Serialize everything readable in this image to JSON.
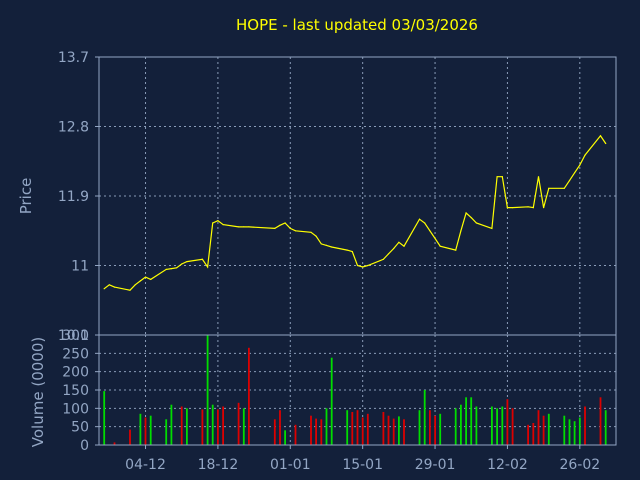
{
  "chart_data": [
    {
      "type": "line",
      "title": "HOPE - last updated 03/03/2026",
      "ylabel": "Price",
      "ylim": [
        10.1,
        13.7
      ],
      "yticks": [
        "13.7",
        "12.8",
        "11.9",
        "11",
        "10.1"
      ],
      "ytick_values": [
        13.7,
        12.8,
        11.9,
        11,
        10.1
      ],
      "grid": true,
      "colors": {
        "background": "#13203a",
        "axes": "#93a6c4",
        "grid": "#8a9cb8",
        "text": "#93a6c4",
        "title": "#ffff00",
        "line": "#ffff00"
      },
      "x": [
        "2025-11-26",
        "2025-11-27",
        "2025-11-28",
        "2025-12-01",
        "2025-12-02",
        "2025-12-03",
        "2025-12-04",
        "2025-12-05",
        "2025-12-08",
        "2025-12-09",
        "2025-12-10",
        "2025-12-11",
        "2025-12-12",
        "2025-12-15",
        "2025-12-16",
        "2025-12-17",
        "2025-12-18",
        "2025-12-19",
        "2025-12-22",
        "2025-12-23",
        "2025-12-24",
        "2025-12-29",
        "2025-12-30",
        "2025-12-31",
        "2026-01-01",
        "2026-01-02",
        "2026-01-05",
        "2026-01-06",
        "2026-01-07",
        "2026-01-08",
        "2026-01-09",
        "2026-01-12",
        "2026-01-13",
        "2026-01-14",
        "2026-01-15",
        "2026-01-16",
        "2026-01-19",
        "2026-01-20",
        "2026-01-21",
        "2026-01-22",
        "2026-01-23",
        "2026-01-26",
        "2026-01-27",
        "2026-01-28",
        "2026-01-29",
        "2026-01-30",
        "2026-02-02",
        "2026-02-03",
        "2026-02-04",
        "2026-02-05",
        "2026-02-06",
        "2026-02-09",
        "2026-02-10",
        "2026-02-11",
        "2026-02-12",
        "2026-02-13",
        "2026-02-16",
        "2026-02-17",
        "2026-02-18",
        "2026-02-19",
        "2026-02-20",
        "2026-02-23",
        "2026-02-24",
        "2026-02-25",
        "2026-02-26",
        "2026-02-27",
        "2026-03-02",
        "2026-03-03"
      ],
      "values": [
        10.7,
        10.75,
        10.72,
        10.68,
        10.75,
        10.8,
        10.85,
        10.82,
        10.95,
        10.96,
        10.97,
        11.02,
        11.05,
        11.08,
        10.98,
        11.55,
        11.58,
        11.53,
        11.5,
        11.5,
        11.5,
        11.48,
        11.52,
        11.55,
        11.48,
        11.45,
        11.43,
        11.38,
        11.28,
        11.26,
        11.24,
        11.2,
        11.18,
        11.0,
        10.98,
        11.0,
        11.08,
        11.15,
        11.22,
        11.3,
        11.25,
        11.6,
        11.55,
        11.45,
        11.35,
        11.25,
        11.2,
        11.45,
        11.68,
        11.62,
        11.55,
        11.48,
        12.15,
        12.15,
        11.75,
        11.75,
        11.76,
        11.75,
        12.15,
        11.75,
        12.0,
        12.0,
        12.1,
        12.2,
        12.3,
        12.43,
        12.68,
        12.58
      ]
    },
    {
      "type": "bar",
      "ylabel": "Volume (0000)",
      "ylim": [
        0,
        300
      ],
      "yticks": [
        "300",
        "250",
        "200",
        "150",
        "100",
        "50",
        "0"
      ],
      "ytick_values": [
        300,
        250,
        200,
        150,
        100,
        50,
        0
      ],
      "xtick_labels": [
        "04-12",
        "18-12",
        "01-01",
        "15-01",
        "29-01",
        "12-02",
        "26-02"
      ],
      "xtick_dates": [
        "2025-12-04",
        "2025-12-18",
        "2026-01-01",
        "2026-01-15",
        "2026-01-29",
        "2026-02-12",
        "2026-02-26"
      ],
      "grid": true,
      "colors": {
        "up": "#00dd00",
        "down": "#dd0000"
      },
      "bars": [
        {
          "date": "2025-11-26",
          "value": 147,
          "dir": "up"
        },
        {
          "date": "2025-11-28",
          "value": 7,
          "dir": "down"
        },
        {
          "date": "2025-12-01",
          "value": 42,
          "dir": "down"
        },
        {
          "date": "2025-12-03",
          "value": 85,
          "dir": "up"
        },
        {
          "date": "2025-12-04",
          "value": 75,
          "dir": "down"
        },
        {
          "date": "2025-12-05",
          "value": 80,
          "dir": "up"
        },
        {
          "date": "2025-12-08",
          "value": 70,
          "dir": "up"
        },
        {
          "date": "2025-12-09",
          "value": 110,
          "dir": "up"
        },
        {
          "date": "2025-12-11",
          "value": 105,
          "dir": "down"
        },
        {
          "date": "2025-12-12",
          "value": 100,
          "dir": "up"
        },
        {
          "date": "2025-12-15",
          "value": 97,
          "dir": "down"
        },
        {
          "date": "2025-12-16",
          "value": 300,
          "dir": "up"
        },
        {
          "date": "2025-12-17",
          "value": 110,
          "dir": "up"
        },
        {
          "date": "2025-12-18",
          "value": 97,
          "dir": "down"
        },
        {
          "date": "2025-12-19",
          "value": 105,
          "dir": "down"
        },
        {
          "date": "2025-12-22",
          "value": 115,
          "dir": "down"
        },
        {
          "date": "2025-12-23",
          "value": 100,
          "dir": "up"
        },
        {
          "date": "2025-12-24",
          "value": 265,
          "dir": "down"
        },
        {
          "date": "2025-12-29",
          "value": 70,
          "dir": "down"
        },
        {
          "date": "2025-12-30",
          "value": 95,
          "dir": "down"
        },
        {
          "date": "2025-12-31",
          "value": 40,
          "dir": "up"
        },
        {
          "date": "2026-01-02",
          "value": 55,
          "dir": "down"
        },
        {
          "date": "2026-01-05",
          "value": 80,
          "dir": "down"
        },
        {
          "date": "2026-01-06",
          "value": 72,
          "dir": "down"
        },
        {
          "date": "2026-01-07",
          "value": 70,
          "dir": "down"
        },
        {
          "date": "2026-01-08",
          "value": 100,
          "dir": "up"
        },
        {
          "date": "2026-01-09",
          "value": 238,
          "dir": "up"
        },
        {
          "date": "2026-01-12",
          "value": 95,
          "dir": "up"
        },
        {
          "date": "2026-01-13",
          "value": 90,
          "dir": "down"
        },
        {
          "date": "2026-01-14",
          "value": 95,
          "dir": "down"
        },
        {
          "date": "2026-01-15",
          "value": 75,
          "dir": "down"
        },
        {
          "date": "2026-01-16",
          "value": 85,
          "dir": "down"
        },
        {
          "date": "2026-01-19",
          "value": 90,
          "dir": "down"
        },
        {
          "date": "2026-01-20",
          "value": 80,
          "dir": "down"
        },
        {
          "date": "2026-01-21",
          "value": 72,
          "dir": "down"
        },
        {
          "date": "2026-01-22",
          "value": 78,
          "dir": "up"
        },
        {
          "date": "2026-01-23",
          "value": 70,
          "dir": "down"
        },
        {
          "date": "2026-01-26",
          "value": 95,
          "dir": "up"
        },
        {
          "date": "2026-01-27",
          "value": 150,
          "dir": "up"
        },
        {
          "date": "2026-01-28",
          "value": 95,
          "dir": "down"
        },
        {
          "date": "2026-01-29",
          "value": 80,
          "dir": "down"
        },
        {
          "date": "2026-01-30",
          "value": 85,
          "dir": "up"
        },
        {
          "date": "2026-02-02",
          "value": 100,
          "dir": "up"
        },
        {
          "date": "2026-02-03",
          "value": 110,
          "dir": "up"
        },
        {
          "date": "2026-02-04",
          "value": 130,
          "dir": "up"
        },
        {
          "date": "2026-02-05",
          "value": 130,
          "dir": "up"
        },
        {
          "date": "2026-02-06",
          "value": 105,
          "dir": "up"
        },
        {
          "date": "2026-02-09",
          "value": 105,
          "dir": "up"
        },
        {
          "date": "2026-02-10",
          "value": 100,
          "dir": "up"
        },
        {
          "date": "2026-02-11",
          "value": 105,
          "dir": "up"
        },
        {
          "date": "2026-02-12",
          "value": 125,
          "dir": "down"
        },
        {
          "date": "2026-02-13",
          "value": 100,
          "dir": "down"
        },
        {
          "date": "2026-02-16",
          "value": 55,
          "dir": "down"
        },
        {
          "date": "2026-02-17",
          "value": 60,
          "dir": "down"
        },
        {
          "date": "2026-02-18",
          "value": 95,
          "dir": "down"
        },
        {
          "date": "2026-02-19",
          "value": 80,
          "dir": "down"
        },
        {
          "date": "2026-02-20",
          "value": 85,
          "dir": "up"
        },
        {
          "date": "2026-02-23",
          "value": 80,
          "dir": "up"
        },
        {
          "date": "2026-02-24",
          "value": 70,
          "dir": "up"
        },
        {
          "date": "2026-02-25",
          "value": 65,
          "dir": "up"
        },
        {
          "date": "2026-02-26",
          "value": 75,
          "dir": "up"
        },
        {
          "date": "2026-02-27",
          "value": 105,
          "dir": "down"
        },
        {
          "date": "2026-03-02",
          "value": 130,
          "dir": "down"
        },
        {
          "date": "2026-03-03",
          "value": 95,
          "dir": "up"
        }
      ]
    }
  ]
}
